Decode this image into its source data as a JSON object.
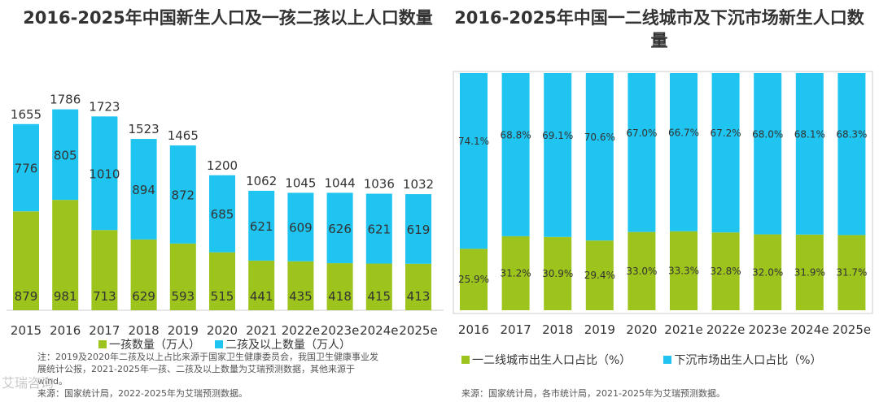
{
  "colors": {
    "green": "#9dc41d",
    "blue": "#1fc4f0",
    "text": "#333333",
    "note": "#555555"
  },
  "chart_data": [
    {
      "type": "bar",
      "stacked": true,
      "title": "2016-2025年中国新生人口及一孩二孩以上人口数量",
      "categories": [
        "2015",
        "2016",
        "2017",
        "2018",
        "2019",
        "2020",
        "2021",
        "2022e",
        "2023e",
        "2024e",
        "2025e"
      ],
      "totals": [
        1655,
        1786,
        1723,
        1523,
        1465,
        1200,
        1062,
        1045,
        1044,
        1036,
        1032
      ],
      "series": [
        {
          "name": "一孩数量（万人）",
          "values": [
            879,
            981,
            713,
            629,
            593,
            515,
            441,
            435,
            418,
            415,
            413
          ]
        },
        {
          "name": "二孩及以上数量（万人）",
          "values": [
            776,
            805,
            1010,
            894,
            872,
            685,
            621,
            609,
            626,
            621,
            619
          ]
        }
      ],
      "ylim": [
        0,
        1900
      ],
      "legend": "bottom"
    },
    {
      "type": "bar",
      "stacked": true,
      "percent": true,
      "title": "2016-2025年中国一二线城市及下沉市场新生人口数量",
      "categories": [
        "2016",
        "2017",
        "2018",
        "2019",
        "2020",
        "2021e",
        "2022e",
        "2023e",
        "2024e",
        "2025e"
      ],
      "series": [
        {
          "name": "一二线城市出生人口占比（%）",
          "values": [
            25.9,
            31.2,
            30.9,
            29.4,
            33.0,
            33.3,
            32.8,
            32.0,
            31.9,
            31.7
          ]
        },
        {
          "name": "下沉市场出生人口占比（%）",
          "values": [
            74.1,
            68.8,
            69.1,
            70.6,
            67.0,
            66.7,
            67.2,
            68.0,
            68.1,
            68.3
          ]
        }
      ],
      "ylim": [
        0,
        100
      ],
      "legend": "bottom"
    }
  ],
  "left_notes": {
    "line1": "注：2019及2020年二孩及以上占比来源于国家卫生健康委员会，我国卫生健康事业发",
    "line2": "展统计公报，2021-2025年一孩、二孩及以上数量为艾瑞预测数据，其他来源于",
    "line3": "wind。",
    "line4": "来源：国家统计局，2022-2025年为艾瑞预测数据。"
  },
  "right_source": "来源：国家统计局，各市统计局，2021-2025年为艾瑞预测数据。",
  "watermark": "艾瑞咨询"
}
